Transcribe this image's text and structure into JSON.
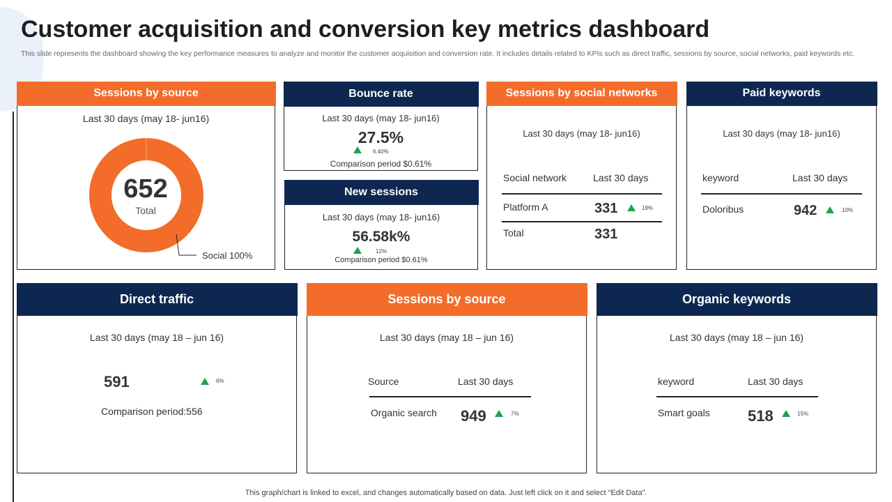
{
  "title": "Customer acquisition and conversion key metrics dashboard",
  "subtitle": "This slide represents the dashboard showing the key performance measures to analyze and monitor the customer acquisition and conversion rate. It includes details related to KPIs such as direct traffic, sessions by source, social networks, paid keywords etc.",
  "colors": {
    "orange": "#f36c2a",
    "navy": "#0e2751",
    "up": "#1aa251"
  },
  "sessions_by_source": {
    "title": "Sessions  by source",
    "period": "Last 30 days (may 18- jun16)",
    "total": "652",
    "total_label": "Total",
    "slice_label": "Social 100%",
    "chart_data": {
      "type": "pie",
      "categories": [
        "Social"
      ],
      "values": [
        100
      ]
    }
  },
  "bounce_rate": {
    "title": "Bounce rate",
    "period": "Last 30 days (may 18- jun16)",
    "value": "27.5%",
    "change": "6.40%",
    "trend_icon": "triangle-up",
    "comparison": "Comparison period $0.61%"
  },
  "new_sessions": {
    "title": "New sessions",
    "period": "Last 30 days (may 18- jun16)",
    "value": "56.58k%",
    "change": "12%",
    "trend_icon": "triangle-up",
    "comparison": "Comparison  period $0.61%"
  },
  "social": {
    "title": "Sessions  by social networks",
    "period": "Last 30 days (may 18- jun16)",
    "col1": "Social network",
    "col2": "Last 30 days",
    "row_label": "Platform A",
    "row_value": "331",
    "row_change": "19%",
    "total_label": "Total",
    "total_value": "331"
  },
  "paid": {
    "title": "Paid keywords",
    "period": "Last 30 days (may 18- jun16)",
    "col1": "keyword",
    "col2": "Last 30 days",
    "row_label": "Doloribus",
    "row_value": "942",
    "row_change": "10%"
  },
  "direct": {
    "title": "Direct traffic",
    "period": "Last 30 days (may 18 – jun 16)",
    "value": "591",
    "change": "6%",
    "comparison": "Comparison period:556"
  },
  "source2": {
    "title": "Sessions by source",
    "period": "Last 30 days (may 18 – jun 16)",
    "col1": "Source",
    "col2": "Last 30 days",
    "row_label": "Organic search",
    "row_value": "949",
    "row_change": "7%"
  },
  "organic": {
    "title": "Organic keywords",
    "period": "Last 30 days (may 18 – jun 16)",
    "col1": "keyword",
    "col2": "Last 30 days",
    "row_label": "Smart goals",
    "row_value": "518",
    "row_change": "15%"
  },
  "footer": "This graph/chart is linked to excel, and changes automatically based on data. Just left click on it and select “Edit Data”."
}
